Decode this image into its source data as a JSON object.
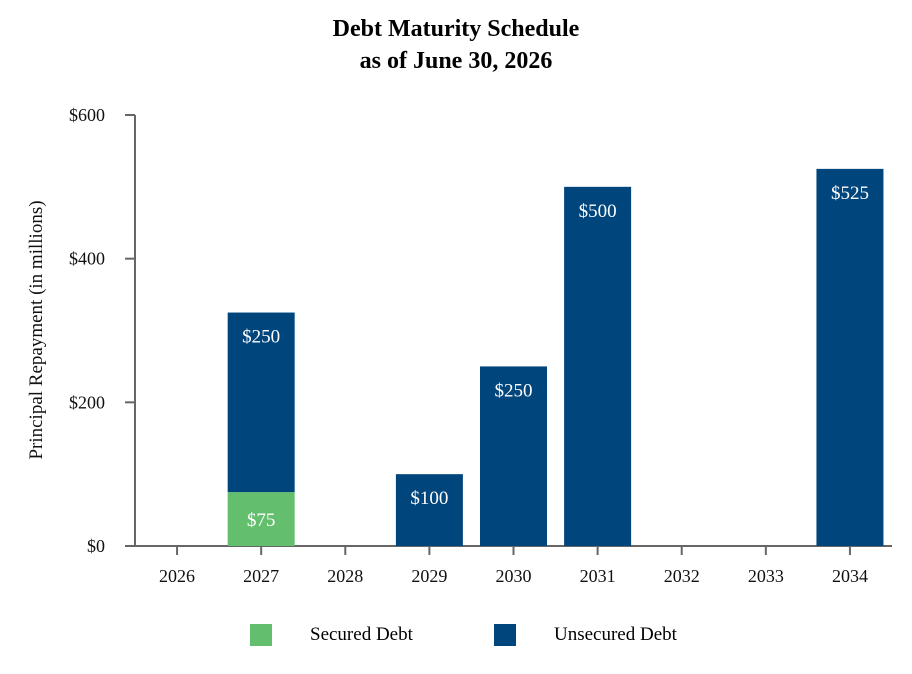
{
  "chart_data": {
    "type": "bar",
    "stacked": true,
    "title": "Debt Maturity Schedule",
    "subtitle": "as of June 30, 2026",
    "xlabel": "",
    "ylabel": "Principal Repayment (in millions)",
    "ylim": [
      0,
      600
    ],
    "yticks": [
      0,
      200,
      400,
      600
    ],
    "ytick_labels": [
      "$0",
      "$200",
      "$400",
      "$600"
    ],
    "categories": [
      "2026",
      "2027",
      "2028",
      "2029",
      "2030",
      "2031",
      "2032",
      "2033",
      "2034"
    ],
    "series": [
      {
        "name": "Secured Debt",
        "color": "#63BE6E",
        "values": [
          0,
          75,
          0,
          0,
          0,
          0,
          0,
          0,
          0
        ]
      },
      {
        "name": "Unsecured Debt",
        "color": "#00457C",
        "values": [
          0,
          250,
          0,
          100,
          250,
          500,
          0,
          0,
          525
        ]
      }
    ],
    "data_labels": [
      {
        "series": 0,
        "category": "2027",
        "text": "$75"
      },
      {
        "series": 1,
        "category": "2027",
        "text": "$250"
      },
      {
        "series": 1,
        "category": "2029",
        "text": "$100"
      },
      {
        "series": 1,
        "category": "2030",
        "text": "$250"
      },
      {
        "series": 1,
        "category": "2031",
        "text": "$500"
      },
      {
        "series": 1,
        "category": "2034",
        "text": "$525"
      }
    ],
    "legend": {
      "placement": "bottom"
    },
    "grid": false
  }
}
